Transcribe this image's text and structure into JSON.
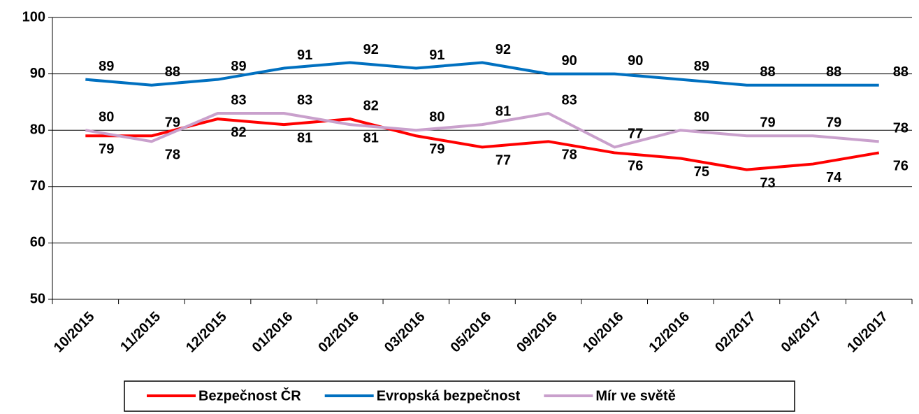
{
  "chart_data": {
    "type": "line",
    "categories": [
      "10/2015",
      "11/2015",
      "12/2015",
      "01/2016",
      "02/2016",
      "03/2016",
      "05/2016",
      "09/2016",
      "10/2016",
      "12/2016",
      "02/2017",
      "04/2017",
      "10/2017"
    ],
    "series": [
      {
        "name": "Bezpečnost ČR",
        "color": "#ff0000",
        "values": [
          79,
          79,
          82,
          81,
          82,
          79,
          77,
          78,
          76,
          75,
          73,
          74,
          76
        ]
      },
      {
        "name": "Evropská bezpečnost",
        "color": "#0070c0",
        "values": [
          89,
          88,
          89,
          91,
          92,
          91,
          92,
          90,
          90,
          89,
          88,
          88,
          88
        ]
      },
      {
        "name": "Mír ve světě",
        "color": "#c9a0cc",
        "values": [
          80,
          78,
          83,
          83,
          81,
          80,
          81,
          83,
          77,
          80,
          79,
          79,
          78
        ]
      }
    ],
    "ylim": [
      50,
      100
    ],
    "yticks": [
      50,
      60,
      70,
      80,
      90,
      100
    ],
    "grid": true,
    "legend": "bottom"
  }
}
